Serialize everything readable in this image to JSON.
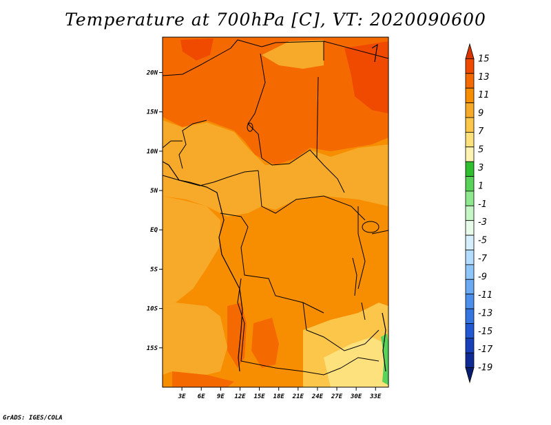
{
  "title": "Temperature at 700hPa [C], VT: 2020090600",
  "credit": "GrADS: IGES/COLA",
  "map": {
    "lat_ticks": [
      "20N",
      "15N",
      "10N",
      "5N",
      "EQ",
      "5S",
      "10S",
      "15S"
    ],
    "lon_ticks": [
      "3E",
      "6E",
      "9E",
      "12E",
      "15E",
      "18E",
      "21E",
      "24E",
      "27E",
      "30E",
      "33E"
    ],
    "lat_values": [
      20,
      15,
      10,
      5,
      0,
      -5,
      -10,
      -15
    ],
    "lon_values": [
      3,
      6,
      9,
      12,
      15,
      18,
      21,
      24,
      27,
      30,
      33
    ],
    "lon_range": [
      0,
      35
    ],
    "lat_range": [
      -20,
      24.5
    ]
  },
  "colorbar": {
    "labels": [
      "15",
      "13",
      "11",
      "9",
      "7",
      "5",
      "3",
      "1",
      "-1",
      "-3",
      "-5",
      "-7",
      "-9",
      "-11",
      "-13",
      "-15",
      "-17",
      "-19"
    ],
    "colors": [
      "#d93500",
      "#f04a00",
      "#f56a00",
      "#f78d00",
      "#f7aa29",
      "#fbc649",
      "#fde17c",
      "#fff3b4",
      "#2fbf2f",
      "#59d259",
      "#8ee88e",
      "#c5f5c5",
      "#e8fbe8",
      "#d7eefd",
      "#b4dcfc",
      "#8fc6fa",
      "#6aaaf3",
      "#4d90ec",
      "#3575e2",
      "#2358d3",
      "#1840b8",
      "#0f2a94",
      "#081c70"
    ]
  }
}
